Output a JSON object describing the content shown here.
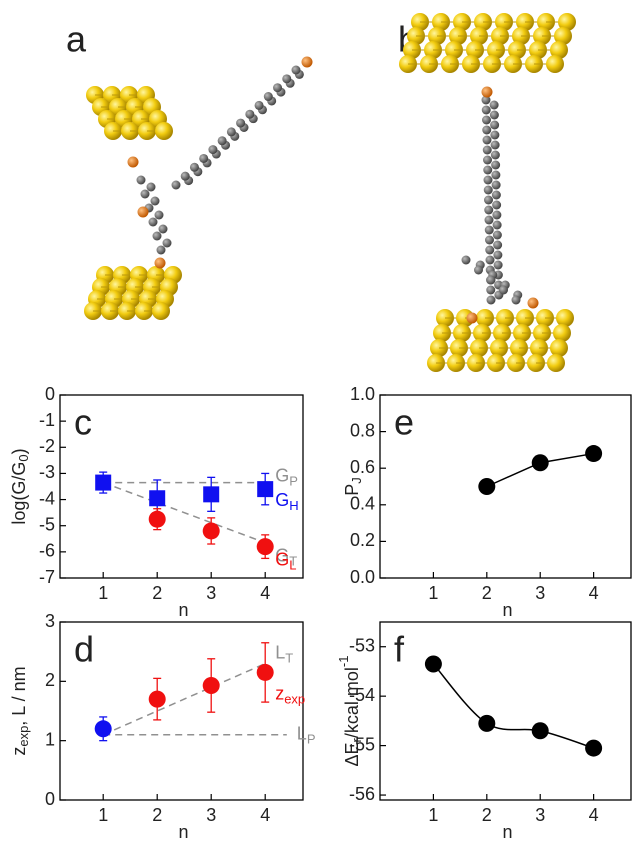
{
  "figure_labels": [
    "a",
    "b"
  ],
  "chart_data": [
    {
      "type": "scatter",
      "title": "c",
      "xlabel": "n",
      "ylabel": {
        "text": "log(G/G",
        "sub": "0",
        "tail": ")"
      },
      "xlim": [
        0.2,
        4.7
      ],
      "xticks": [
        1,
        2,
        3,
        4
      ],
      "ylim": [
        -7,
        0
      ],
      "yticks": [
        -7,
        -6,
        -5,
        -4,
        -3,
        -2,
        -1,
        0
      ],
      "series": [
        {
          "name": "G",
          "name_sub": "P",
          "color": "#909090",
          "marker": "none",
          "line": "dashed",
          "x": [
            1,
            4
          ],
          "values": [
            -3.35,
            -3.35
          ]
        },
        {
          "name": "G",
          "name_sub": "T",
          "color": "#909090",
          "marker": "none",
          "line": "dashed",
          "x": [
            1,
            4
          ],
          "values": [
            -3.35,
            -5.65
          ]
        },
        {
          "name": "G",
          "name_sub": "H",
          "color": "#1010f0",
          "marker": "square",
          "x": [
            1,
            2,
            3,
            4
          ],
          "values": [
            -3.35,
            -3.95,
            -3.8,
            -3.6
          ],
          "errors": [
            0.4,
            0.7,
            0.65,
            0.6
          ]
        },
        {
          "name": "G",
          "name_sub": "L",
          "color": "#f01010",
          "marker": "circle",
          "x": [
            2,
            3,
            4
          ],
          "values": [
            -4.75,
            -5.2,
            -5.8
          ],
          "errors": [
            0.4,
            0.5,
            0.45
          ]
        }
      ]
    },
    {
      "type": "scatter",
      "title": "e",
      "xlabel": "n",
      "ylabel": {
        "text": "P",
        "sub": "J"
      },
      "xlim": [
        0,
        4.7
      ],
      "xticks": [
        1,
        2,
        3,
        4
      ],
      "ylim": [
        0,
        1
      ],
      "yticks": [
        {
          "value": 0,
          "label": "0.0"
        },
        0.2,
        0.4,
        0.6,
        0.8,
        {
          "value": 1,
          "label": "1.0"
        }
      ],
      "series": [
        {
          "color": "#000000",
          "marker": "circle",
          "line": "solid",
          "x": [
            2,
            3,
            4
          ],
          "values": [
            0.5,
            0.63,
            0.68
          ]
        }
      ]
    },
    {
      "type": "scatter",
      "title": "d",
      "xlabel": "n",
      "ylabel": {
        "text": "z",
        "sub": "exp",
        "tail": ", L / nm"
      },
      "xlim": [
        0.2,
        4.7
      ],
      "xticks": [
        1,
        2,
        3,
        4
      ],
      "ylim": [
        0,
        3
      ],
      "yticks": [
        0,
        1,
        2,
        3
      ],
      "series": [
        {
          "name": "L",
          "name_sub": "T",
          "color": "#909090",
          "marker": "none",
          "line": "dashed",
          "x": [
            1,
            4
          ],
          "values": [
            1.1,
            2.3
          ]
        },
        {
          "name": "L",
          "name_sub": "P",
          "color": "#909090",
          "marker": "none",
          "line": "dashed",
          "x": [
            1,
            4.4
          ],
          "values": [
            1.1,
            1.1
          ]
        },
        {
          "color": "#1010f0",
          "marker": "circle",
          "x": [
            1
          ],
          "values": [
            1.2
          ],
          "errors": [
            0.2
          ]
        },
        {
          "name": "z",
          "name_sub": "exp",
          "color": "#f01010",
          "marker": "circle",
          "x": [
            2,
            3,
            4
          ],
          "values": [
            1.7,
            1.93,
            2.15
          ],
          "errors": [
            0.35,
            0.45,
            0.5
          ]
        }
      ]
    },
    {
      "type": "scatter",
      "title": "f",
      "xlabel": "n",
      "ylabel": {
        "text": "ΔE",
        "sub": "r",
        "tail": "/kcal mol",
        "sup": "-1"
      },
      "xlim": [
        0,
        4.7
      ],
      "xticks": [
        1,
        2,
        3,
        4
      ],
      "ylim": [
        -56.1,
        -52.5
      ],
      "yticks": [
        -56,
        -55,
        -54,
        -53
      ],
      "series": [
        {
          "color": "#000000",
          "marker": "circle",
          "line": "smooth",
          "x": [
            1,
            2,
            3,
            4
          ],
          "values": [
            -53.35,
            -54.55,
            -54.7,
            -55.05
          ]
        }
      ]
    }
  ]
}
